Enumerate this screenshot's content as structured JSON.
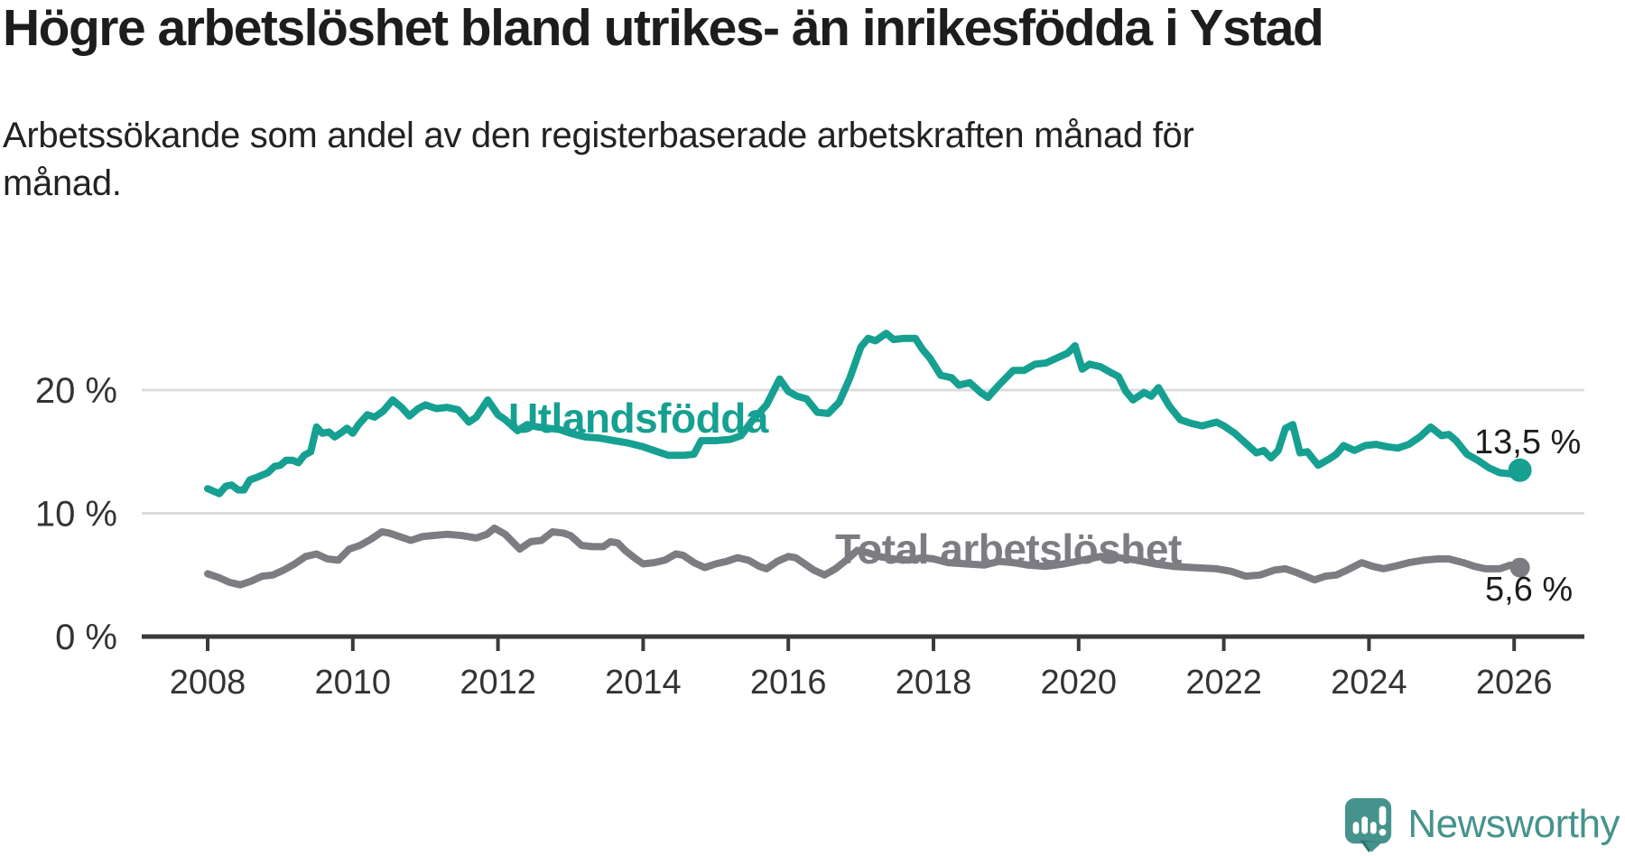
{
  "chart_data": {
    "type": "line",
    "title": "Högre arbetslöshet bland utrikes- än inrikesfödda i Ystad",
    "subtitle": "Arbetssökande som andel av den registerbaserade arbetskraften månad för månad.",
    "x_axis": {
      "ticks": [
        2008,
        2010,
        2012,
        2014,
        2016,
        2018,
        2020,
        2022,
        2024,
        2026
      ],
      "range": [
        2007.1,
        2027.0
      ]
    },
    "y_axis": {
      "tick_values": [
        0,
        10,
        20
      ],
      "tick_labels": [
        "0 %",
        "10 %",
        "20 %"
      ],
      "unit": "%",
      "range": [
        0,
        26
      ]
    },
    "grid": "horizontal-light",
    "legend_position": "inline-line-labels",
    "series": [
      {
        "name": "Utlandsfödda",
        "color": "#16a091",
        "end_label": "13,5 %",
        "final_value": 13.5,
        "points": [
          [
            2008.0,
            12.0
          ],
          [
            2008.08,
            11.8
          ],
          [
            2008.16,
            11.6
          ],
          [
            2008.25,
            12.2
          ],
          [
            2008.33,
            12.3
          ],
          [
            2008.42,
            11.9
          ],
          [
            2008.5,
            11.9
          ],
          [
            2008.58,
            12.7
          ],
          [
            2008.67,
            12.9
          ],
          [
            2008.75,
            13.1
          ],
          [
            2008.83,
            13.3
          ],
          [
            2008.92,
            13.8
          ],
          [
            2009.0,
            13.9
          ],
          [
            2009.08,
            14.3
          ],
          [
            2009.17,
            14.3
          ],
          [
            2009.25,
            14.1
          ],
          [
            2009.33,
            14.7
          ],
          [
            2009.42,
            15.0
          ],
          [
            2009.5,
            17.0
          ],
          [
            2009.58,
            16.5
          ],
          [
            2009.67,
            16.6
          ],
          [
            2009.75,
            16.2
          ],
          [
            2009.83,
            16.5
          ],
          [
            2009.92,
            16.9
          ],
          [
            2010.0,
            16.5
          ],
          [
            2010.08,
            17.2
          ],
          [
            2010.2,
            18.0
          ],
          [
            2010.3,
            17.8
          ],
          [
            2010.42,
            18.3
          ],
          [
            2010.55,
            19.2
          ],
          [
            2010.67,
            18.6
          ],
          [
            2010.78,
            17.9
          ],
          [
            2010.9,
            18.5
          ],
          [
            2011.0,
            18.8
          ],
          [
            2011.15,
            18.5
          ],
          [
            2011.3,
            18.6
          ],
          [
            2011.45,
            18.4
          ],
          [
            2011.6,
            17.4
          ],
          [
            2011.7,
            17.8
          ],
          [
            2011.86,
            19.2
          ],
          [
            2012.0,
            18.0
          ],
          [
            2012.1,
            17.6
          ],
          [
            2012.27,
            16.7
          ],
          [
            2012.4,
            17.2
          ],
          [
            2012.55,
            17.0
          ],
          [
            2012.7,
            16.9
          ],
          [
            2012.85,
            16.8
          ],
          [
            2013.0,
            16.5
          ],
          [
            2013.2,
            16.2
          ],
          [
            2013.4,
            16.1
          ],
          [
            2013.6,
            15.9
          ],
          [
            2013.8,
            15.7
          ],
          [
            2014.0,
            15.4
          ],
          [
            2014.2,
            15.0
          ],
          [
            2014.35,
            14.7
          ],
          [
            2014.55,
            14.7
          ],
          [
            2014.7,
            14.8
          ],
          [
            2014.8,
            15.9
          ],
          [
            2015.0,
            15.9
          ],
          [
            2015.2,
            16.0
          ],
          [
            2015.35,
            16.3
          ],
          [
            2015.5,
            17.5
          ],
          [
            2015.7,
            18.8
          ],
          [
            2015.88,
            20.9
          ],
          [
            2016.0,
            19.9
          ],
          [
            2016.12,
            19.5
          ],
          [
            2016.25,
            19.3
          ],
          [
            2016.4,
            18.2
          ],
          [
            2016.55,
            18.1
          ],
          [
            2016.7,
            19.0
          ],
          [
            2016.85,
            21.0
          ],
          [
            2017.0,
            23.5
          ],
          [
            2017.1,
            24.2
          ],
          [
            2017.2,
            24.0
          ],
          [
            2017.35,
            24.6
          ],
          [
            2017.45,
            24.1
          ],
          [
            2017.6,
            24.2
          ],
          [
            2017.75,
            24.2
          ],
          [
            2017.85,
            23.3
          ],
          [
            2017.95,
            22.6
          ],
          [
            2018.1,
            21.2
          ],
          [
            2018.25,
            21.0
          ],
          [
            2018.35,
            20.4
          ],
          [
            2018.5,
            20.6
          ],
          [
            2018.65,
            19.8
          ],
          [
            2018.75,
            19.4
          ],
          [
            2018.9,
            20.4
          ],
          [
            2019.1,
            21.6
          ],
          [
            2019.25,
            21.6
          ],
          [
            2019.4,
            22.1
          ],
          [
            2019.55,
            22.2
          ],
          [
            2019.7,
            22.6
          ],
          [
            2019.85,
            23.0
          ],
          [
            2019.95,
            23.6
          ],
          [
            2020.05,
            21.7
          ],
          [
            2020.15,
            22.1
          ],
          [
            2020.3,
            21.9
          ],
          [
            2020.45,
            21.4
          ],
          [
            2020.55,
            21.1
          ],
          [
            2020.65,
            19.9
          ],
          [
            2020.75,
            19.2
          ],
          [
            2020.9,
            19.8
          ],
          [
            2021.0,
            19.5
          ],
          [
            2021.1,
            20.2
          ],
          [
            2021.25,
            18.7
          ],
          [
            2021.4,
            17.6
          ],
          [
            2021.55,
            17.3
          ],
          [
            2021.7,
            17.1
          ],
          [
            2021.9,
            17.4
          ],
          [
            2022.0,
            17.1
          ],
          [
            2022.15,
            16.5
          ],
          [
            2022.3,
            15.7
          ],
          [
            2022.45,
            14.9
          ],
          [
            2022.55,
            15.1
          ],
          [
            2022.65,
            14.5
          ],
          [
            2022.75,
            15.1
          ],
          [
            2022.85,
            16.9
          ],
          [
            2022.95,
            17.2
          ],
          [
            2023.05,
            14.9
          ],
          [
            2023.15,
            15.0
          ],
          [
            2023.3,
            13.9
          ],
          [
            2023.45,
            14.4
          ],
          [
            2023.55,
            14.8
          ],
          [
            2023.65,
            15.5
          ],
          [
            2023.8,
            15.1
          ],
          [
            2023.95,
            15.5
          ],
          [
            2024.1,
            15.6
          ],
          [
            2024.25,
            15.4
          ],
          [
            2024.4,
            15.3
          ],
          [
            2024.55,
            15.6
          ],
          [
            2024.7,
            16.2
          ],
          [
            2024.85,
            17.0
          ],
          [
            2025.0,
            16.3
          ],
          [
            2025.1,
            16.4
          ],
          [
            2025.2,
            15.9
          ],
          [
            2025.35,
            14.8
          ],
          [
            2025.5,
            14.3
          ],
          [
            2025.65,
            13.7
          ],
          [
            2025.8,
            13.3
          ],
          [
            2025.95,
            13.2
          ],
          [
            2026.08,
            13.5
          ]
        ]
      },
      {
        "name": "Total arbetslöshet",
        "color": "#7c7c82",
        "end_label": "5,6 %",
        "final_value": 5.6,
        "points": [
          [
            2008.0,
            5.1
          ],
          [
            2008.15,
            4.8
          ],
          [
            2008.3,
            4.4
          ],
          [
            2008.45,
            4.2
          ],
          [
            2008.6,
            4.5
          ],
          [
            2008.75,
            4.9
          ],
          [
            2008.9,
            5.0
          ],
          [
            2009.05,
            5.4
          ],
          [
            2009.2,
            5.9
          ],
          [
            2009.35,
            6.5
          ],
          [
            2009.5,
            6.7
          ],
          [
            2009.65,
            6.3
          ],
          [
            2009.8,
            6.2
          ],
          [
            2009.95,
            7.1
          ],
          [
            2010.1,
            7.4
          ],
          [
            2010.25,
            7.9
          ],
          [
            2010.4,
            8.5
          ],
          [
            2010.5,
            8.4
          ],
          [
            2010.65,
            8.1
          ],
          [
            2010.8,
            7.8
          ],
          [
            2010.95,
            8.1
          ],
          [
            2011.1,
            8.2
          ],
          [
            2011.3,
            8.3
          ],
          [
            2011.5,
            8.2
          ],
          [
            2011.7,
            8.0
          ],
          [
            2011.85,
            8.3
          ],
          [
            2011.95,
            8.8
          ],
          [
            2012.1,
            8.3
          ],
          [
            2012.3,
            7.1
          ],
          [
            2012.45,
            7.7
          ],
          [
            2012.6,
            7.8
          ],
          [
            2012.75,
            8.5
          ],
          [
            2012.9,
            8.4
          ],
          [
            2013.0,
            8.2
          ],
          [
            2013.15,
            7.4
          ],
          [
            2013.3,
            7.3
          ],
          [
            2013.45,
            7.3
          ],
          [
            2013.55,
            7.7
          ],
          [
            2013.65,
            7.6
          ],
          [
            2013.75,
            7.0
          ],
          [
            2013.9,
            6.3
          ],
          [
            2014.0,
            5.9
          ],
          [
            2014.15,
            6.0
          ],
          [
            2014.3,
            6.2
          ],
          [
            2014.45,
            6.7
          ],
          [
            2014.55,
            6.6
          ],
          [
            2014.7,
            6.0
          ],
          [
            2014.85,
            5.6
          ],
          [
            2015.0,
            5.9
          ],
          [
            2015.15,
            6.1
          ],
          [
            2015.3,
            6.4
          ],
          [
            2015.45,
            6.2
          ],
          [
            2015.6,
            5.7
          ],
          [
            2015.7,
            5.5
          ],
          [
            2015.85,
            6.1
          ],
          [
            2016.0,
            6.5
          ],
          [
            2016.1,
            6.4
          ],
          [
            2016.2,
            6.0
          ],
          [
            2016.35,
            5.4
          ],
          [
            2016.5,
            5.0
          ],
          [
            2016.65,
            5.5
          ],
          [
            2016.8,
            6.2
          ],
          [
            2016.95,
            7.0
          ],
          [
            2017.1,
            6.8
          ],
          [
            2017.25,
            6.5
          ],
          [
            2017.45,
            6.3
          ],
          [
            2017.65,
            6.2
          ],
          [
            2017.85,
            6.4
          ],
          [
            2018.0,
            6.3
          ],
          [
            2018.2,
            6.0
          ],
          [
            2018.45,
            5.9
          ],
          [
            2018.7,
            5.8
          ],
          [
            2018.9,
            6.1
          ],
          [
            2019.1,
            6.0
          ],
          [
            2019.3,
            5.8
          ],
          [
            2019.55,
            5.7
          ],
          [
            2019.8,
            5.9
          ],
          [
            2020.05,
            6.2
          ],
          [
            2020.3,
            6.5
          ],
          [
            2020.55,
            6.4
          ],
          [
            2020.8,
            6.2
          ],
          [
            2021.05,
            5.9
          ],
          [
            2021.3,
            5.7
          ],
          [
            2021.6,
            5.6
          ],
          [
            2021.9,
            5.5
          ],
          [
            2022.1,
            5.3
          ],
          [
            2022.3,
            4.9
          ],
          [
            2022.5,
            5.0
          ],
          [
            2022.7,
            5.4
          ],
          [
            2022.85,
            5.5
          ],
          [
            2023.0,
            5.2
          ],
          [
            2023.25,
            4.6
          ],
          [
            2023.4,
            4.9
          ],
          [
            2023.55,
            5.0
          ],
          [
            2023.7,
            5.4
          ],
          [
            2023.9,
            6.0
          ],
          [
            2024.05,
            5.7
          ],
          [
            2024.2,
            5.5
          ],
          [
            2024.35,
            5.7
          ],
          [
            2024.55,
            6.0
          ],
          [
            2024.75,
            6.2
          ],
          [
            2024.95,
            6.3
          ],
          [
            2025.1,
            6.3
          ],
          [
            2025.3,
            6.0
          ],
          [
            2025.45,
            5.7
          ],
          [
            2025.6,
            5.5
          ],
          [
            2025.8,
            5.5
          ],
          [
            2025.95,
            5.8
          ],
          [
            2026.08,
            5.6
          ]
        ]
      }
    ]
  },
  "branding": {
    "name": "Newsworthy",
    "icon": "newsworthy-speech-bubble-chart-icon"
  },
  "colors": {
    "foreign_born_line": "#16a091",
    "total_line": "#7c7c82",
    "grid": "#dcdcdc",
    "axis": "#3a3a3a",
    "title_text": "#1d1d1d",
    "tick_text": "#333333",
    "logo": "#45938c"
  }
}
